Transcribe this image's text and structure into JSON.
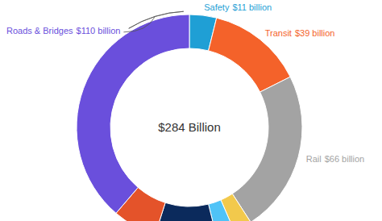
{
  "chart_data": {
    "type": "donut",
    "annotation": "$284 Billion",
    "categories": [
      "Safety",
      "Transit",
      "Rail",
      null,
      null,
      null,
      null,
      "Roads & Bridges"
    ],
    "values": [
      11,
      39,
      66,
      7.5,
      7.5,
      25,
      18,
      110
    ],
    "value_labels": [
      "$11 billion",
      "$39 billion",
      "$66 billion",
      null,
      null,
      null,
      null,
      "$110 billion"
    ],
    "colors": [
      "#1f9fd5",
      "#f4622a",
      "#a3a3a3",
      "#f2c94c",
      "#4fc3f7",
      "#0b2a5c",
      "#e4532a",
      "#6a4fdc"
    ]
  }
}
